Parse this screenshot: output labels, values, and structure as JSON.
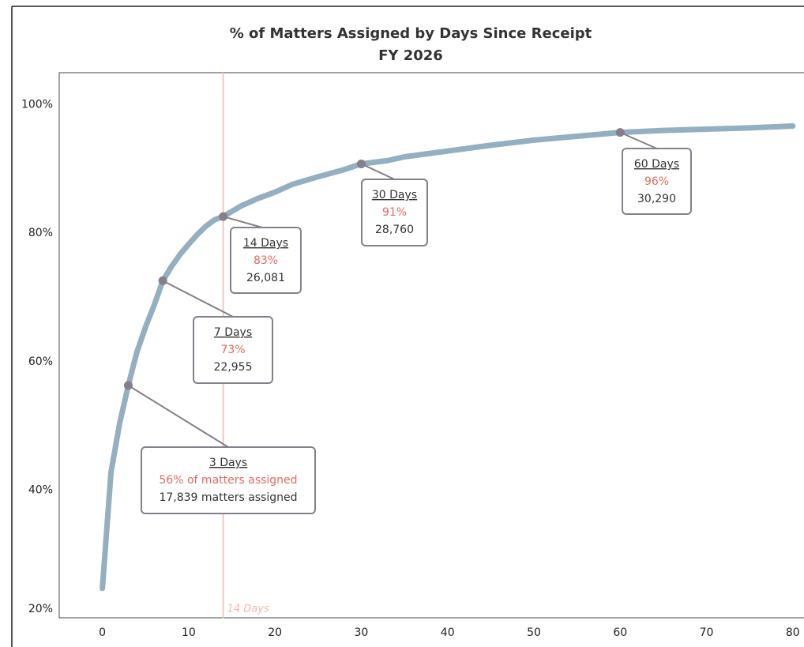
{
  "chart_data": {
    "type": "line",
    "title": "% of Matters Assigned by Days Since Receipt",
    "subtitle": "FY 2026",
    "x": [
      0,
      1,
      2,
      3,
      4,
      5,
      6,
      7,
      8,
      9,
      10,
      11,
      12,
      13,
      14,
      16,
      18,
      20,
      22,
      25,
      28,
      30,
      33,
      35,
      40,
      45,
      50,
      55,
      60,
      65,
      70,
      75,
      80
    ],
    "series": [
      {
        "color": "#93afc0",
        "values": [
          24.7,
          42.8,
          50.4,
          56.3,
          61.5,
          65.4,
          68.8,
          72.6,
          74.8,
          76.7,
          78.3,
          79.8,
          81.1,
          82.1,
          82.6,
          84.2,
          85.4,
          86.4,
          87.6,
          88.8,
          89.9,
          90.8,
          91.3,
          91.9,
          92.8,
          93.7,
          94.5,
          95.1,
          95.7,
          96.0,
          96.2,
          96.4,
          96.7
        ]
      }
    ],
    "xlim": [
      -5,
      81.3
    ],
    "xticks": [
      0,
      10,
      20,
      30,
      40,
      50,
      60,
      70,
      80
    ],
    "ylim": [
      20,
      105
    ],
    "yticks": [
      {
        "value": 20,
        "label": "20%"
      },
      {
        "value": 40,
        "label": "40%"
      },
      {
        "value": 60,
        "label": "60%"
      },
      {
        "value": 80,
        "label": "80%"
      },
      {
        "value": 100,
        "label": "100%"
      }
    ],
    "reference_line": {
      "x": 14,
      "label": "14 Days",
      "color": "#f0c8c0"
    },
    "marker_color": "#857f8c",
    "annotations": [
      {
        "x": 3,
        "y": 56.3,
        "title": "3 Days",
        "pct_label": "56% of matters assigned",
        "count_label": "17,839 matters assigned"
      },
      {
        "x": 7,
        "y": 72.6,
        "title": "7 Days",
        "pct_label": "73%",
        "count_label": "22,955"
      },
      {
        "x": 14,
        "y": 82.6,
        "title": "14 Days",
        "pct_label": "83%",
        "count_label": "26,081"
      },
      {
        "x": 30,
        "y": 90.8,
        "title": "30 Days",
        "pct_label": "91%",
        "count_label": "28,760"
      },
      {
        "x": 60,
        "y": 95.7,
        "title": "60 Days",
        "pct_label": "96%",
        "count_label": "30,290"
      }
    ]
  }
}
